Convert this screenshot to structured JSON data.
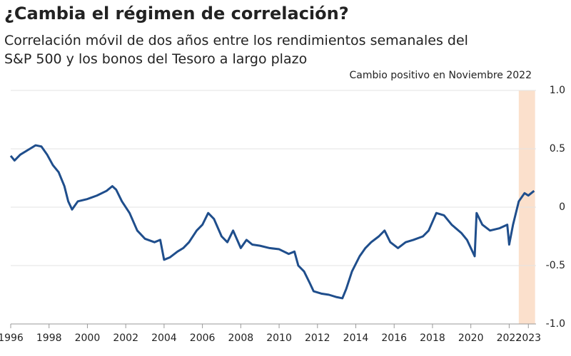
{
  "chart_data": {
    "type": "line",
    "title": "¿Cambia el régimen de correlación?",
    "subtitle": "Correlación móvil de dos años entre los rendimientos semanales del S&P 500 y los bonos del Tesoro a largo plazo",
    "annotation": "Cambio positivo en Noviembre 2022",
    "highlight": [
      2022.5,
      2023.35
    ],
    "highlight_color": "#fbe0cc",
    "x": [
      1996.0,
      1996.2,
      1996.5,
      1997.0,
      1997.3,
      1997.6,
      1997.9,
      1998.2,
      1998.5,
      1998.8,
      1999.0,
      1999.2,
      1999.5,
      2000.0,
      2000.5,
      2001.0,
      2001.3,
      2001.5,
      2001.8,
      2002.2,
      2002.6,
      2003.0,
      2003.5,
      2003.8,
      2004.0,
      2004.3,
      2004.7,
      2005.0,
      2005.3,
      2005.7,
      2006.0,
      2006.3,
      2006.6,
      2007.0,
      2007.3,
      2007.6,
      2008.0,
      2008.3,
      2008.6,
      2009.0,
      2009.5,
      2010.0,
      2010.5,
      2010.8,
      2011.0,
      2011.3,
      2011.6,
      2011.8,
      2012.2,
      2012.6,
      2013.0,
      2013.3,
      2013.5,
      2013.8,
      2014.2,
      2014.5,
      2014.8,
      2015.2,
      2015.5,
      2015.8,
      2016.2,
      2016.6,
      2017.0,
      2017.5,
      2017.8,
      2018.2,
      2018.6,
      2019.0,
      2019.5,
      2019.8,
      2020.2,
      2020.3,
      2020.6,
      2021.0,
      2021.5,
      2021.9,
      2022.0,
      2022.2,
      2022.5,
      2022.8,
      2023.0,
      2023.3
    ],
    "series": [
      {
        "color": "#1f4e8c",
        "values": [
          0.44,
          0.4,
          0.45,
          0.5,
          0.53,
          0.52,
          0.45,
          0.36,
          0.3,
          0.18,
          0.05,
          -0.02,
          0.05,
          0.07,
          0.1,
          0.14,
          0.18,
          0.15,
          0.05,
          -0.05,
          -0.2,
          -0.27,
          -0.3,
          -0.28,
          -0.45,
          -0.43,
          -0.38,
          -0.35,
          -0.3,
          -0.2,
          -0.15,
          -0.05,
          -0.1,
          -0.25,
          -0.3,
          -0.2,
          -0.35,
          -0.28,
          -0.32,
          -0.33,
          -0.35,
          -0.36,
          -0.4,
          -0.38,
          -0.5,
          -0.55,
          -0.65,
          -0.72,
          -0.74,
          -0.75,
          -0.77,
          -0.78,
          -0.7,
          -0.55,
          -0.42,
          -0.35,
          -0.3,
          -0.25,
          -0.2,
          -0.3,
          -0.35,
          -0.3,
          -0.28,
          -0.25,
          -0.2,
          -0.05,
          -0.07,
          -0.15,
          -0.22,
          -0.28,
          -0.42,
          -0.05,
          -0.15,
          -0.2,
          -0.18,
          -0.15,
          -0.32,
          -0.15,
          0.05,
          0.12,
          0.1,
          0.14
        ]
      }
    ],
    "xlim": [
      1996,
      2023.4
    ],
    "xticks": [
      1996,
      1998,
      2000,
      2002,
      2004,
      2006,
      2008,
      2010,
      2012,
      2014,
      2016,
      2018,
      2020,
      2022,
      2023
    ],
    "ylim": [
      -1.0,
      1.0
    ],
    "yticks": [
      {
        "value": -1.0,
        "label": "-1.0"
      },
      {
        "value": -0.5,
        "label": "-0.5"
      },
      0,
      0.5,
      {
        "value": 1.0,
        "label": "1.0"
      }
    ],
    "grid": true
  }
}
